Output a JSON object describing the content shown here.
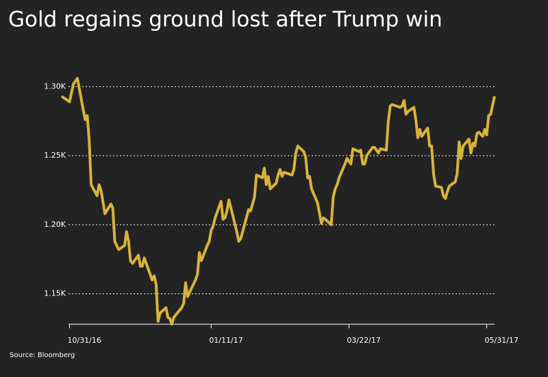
{
  "chart_data": {
    "type": "line",
    "title": "Gold regains ground lost after Trump win",
    "source": "Source: Bloomberg",
    "x": [
      "2016-10-27",
      "2016-10-31",
      "2016-11-02",
      "2016-11-04",
      "2016-11-07",
      "2016-11-08",
      "2016-11-09",
      "2016-11-10",
      "2016-11-11",
      "2016-11-14",
      "2016-11-15",
      "2016-11-16",
      "2016-11-18",
      "2016-11-21",
      "2016-11-22",
      "2016-11-23",
      "2016-11-25",
      "2016-11-28",
      "2016-11-29",
      "2016-11-30",
      "2016-12-01",
      "2016-12-02",
      "2016-12-05",
      "2016-12-06",
      "2016-12-07",
      "2016-12-08",
      "2016-12-09",
      "2016-12-12",
      "2016-12-13",
      "2016-12-14",
      "2016-12-15",
      "2016-12-16",
      "2016-12-19",
      "2016-12-20",
      "2016-12-21",
      "2016-12-22",
      "2016-12-23",
      "2016-12-27",
      "2016-12-28",
      "2016-12-29",
      "2016-12-30",
      "2017-01-03",
      "2017-01-04",
      "2017-01-05",
      "2017-01-06",
      "2017-01-09",
      "2017-01-10",
      "2017-01-11",
      "2017-01-12",
      "2017-01-13",
      "2017-01-16",
      "2017-01-17",
      "2017-01-18",
      "2017-01-19",
      "2017-01-20",
      "2017-01-24",
      "2017-01-25",
      "2017-01-26",
      "2017-01-27",
      "2017-01-30",
      "2017-01-31",
      "2017-02-01",
      "2017-02-02",
      "2017-02-03",
      "2017-02-06",
      "2017-02-07",
      "2017-02-08",
      "2017-02-09",
      "2017-02-10",
      "2017-02-13",
      "2017-02-14",
      "2017-02-15",
      "2017-02-16",
      "2017-02-17",
      "2017-02-21",
      "2017-02-22",
      "2017-02-23",
      "2017-02-24",
      "2017-02-27",
      "2017-02-28",
      "2017-03-01",
      "2017-03-02",
      "2017-03-03",
      "2017-03-06",
      "2017-03-08",
      "2017-03-09",
      "2017-03-10",
      "2017-03-13",
      "2017-03-14",
      "2017-03-15",
      "2017-03-16",
      "2017-03-17",
      "2017-03-20",
      "2017-03-21",
      "2017-03-22",
      "2017-03-23",
      "2017-03-24",
      "2017-03-27",
      "2017-03-28",
      "2017-03-29",
      "2017-03-30",
      "2017-03-31",
      "2017-04-03",
      "2017-04-04",
      "2017-04-05",
      "2017-04-06",
      "2017-04-07",
      "2017-04-10",
      "2017-04-11",
      "2017-04-12",
      "2017-04-13",
      "2017-04-17",
      "2017-04-18",
      "2017-04-19",
      "2017-04-20",
      "2017-04-21",
      "2017-04-24",
      "2017-04-25",
      "2017-04-26",
      "2017-04-27",
      "2017-04-28",
      "2017-05-01",
      "2017-05-02",
      "2017-05-03",
      "2017-05-04",
      "2017-05-05",
      "2017-05-08",
      "2017-05-09",
      "2017-05-10",
      "2017-05-11",
      "2017-05-12",
      "2017-05-15",
      "2017-05-16",
      "2017-05-17",
      "2017-05-18",
      "2017-05-19",
      "2017-05-22",
      "2017-05-23",
      "2017-05-24",
      "2017-05-25",
      "2017-05-26",
      "2017-05-27",
      "2017-05-29",
      "2017-05-30",
      "2017-05-31",
      "2017-06-01",
      "2017-06-02",
      "2017-06-04"
    ],
    "series": [
      {
        "name": "Gold",
        "color": "#d8b33c",
        "values": [
          1293,
          1289,
          1302,
          1306,
          1283,
          1276,
          1279,
          1261,
          1229,
          1221,
          1229,
          1225,
          1208,
          1215,
          1212,
          1188,
          1182,
          1185,
          1195,
          1188,
          1174,
          1172,
          1178,
          1170,
          1170,
          1176,
          1172,
          1160,
          1163,
          1157,
          1130,
          1136,
          1140,
          1133,
          1132,
          1128,
          1133,
          1140,
          1143,
          1158,
          1148,
          1160,
          1164,
          1180,
          1174,
          1185,
          1188,
          1196,
          1199,
          1205,
          1217,
          1204,
          1205,
          1210,
          1218,
          1195,
          1188,
          1190,
          1195,
          1211,
          1210,
          1215,
          1220,
          1236,
          1234,
          1241,
          1229,
          1235,
          1226,
          1230,
          1236,
          1240,
          1235,
          1238,
          1236,
          1240,
          1252,
          1257,
          1253,
          1249,
          1234,
          1235,
          1226,
          1216,
          1201,
          1205,
          1204,
          1200,
          1220,
          1226,
          1229,
          1234,
          1244,
          1248,
          1246,
          1244,
          1255,
          1253,
          1254,
          1244,
          1244,
          1250,
          1256,
          1256,
          1254,
          1252,
          1255,
          1254,
          1275,
          1286,
          1287,
          1285,
          1286,
          1290,
          1280,
          1282,
          1285,
          1276,
          1263,
          1269,
          1264,
          1270,
          1257,
          1257,
          1237,
          1228,
          1227,
          1221,
          1219,
          1224,
          1228,
          1231,
          1237,
          1260,
          1248,
          1257,
          1262,
          1252,
          1259,
          1257,
          1266,
          1267,
          1264,
          1269,
          1265,
          1279,
          1280,
          1293
        ]
      }
    ],
    "xlim": [
      "2016-10-27",
      "2017-06-04"
    ],
    "xticks": [
      {
        "value": "2016-10-31",
        "label": "10/31/16"
      },
      {
        "value": "2017-01-11",
        "label": "01/11/17"
      },
      {
        "value": "2017-03-22",
        "label": "03/22/17"
      },
      {
        "value": "2017-05-31",
        "label": "05/31/17"
      }
    ],
    "ylim": [
      1128,
      1323
    ],
    "yticks": [
      {
        "value": 1150,
        "label": "1.15K"
      },
      {
        "value": 1200,
        "label": "1.20K"
      },
      {
        "value": 1250,
        "label": "1.25K"
      },
      {
        "value": 1300,
        "label": "1.30K"
      }
    ],
    "grid": true
  }
}
